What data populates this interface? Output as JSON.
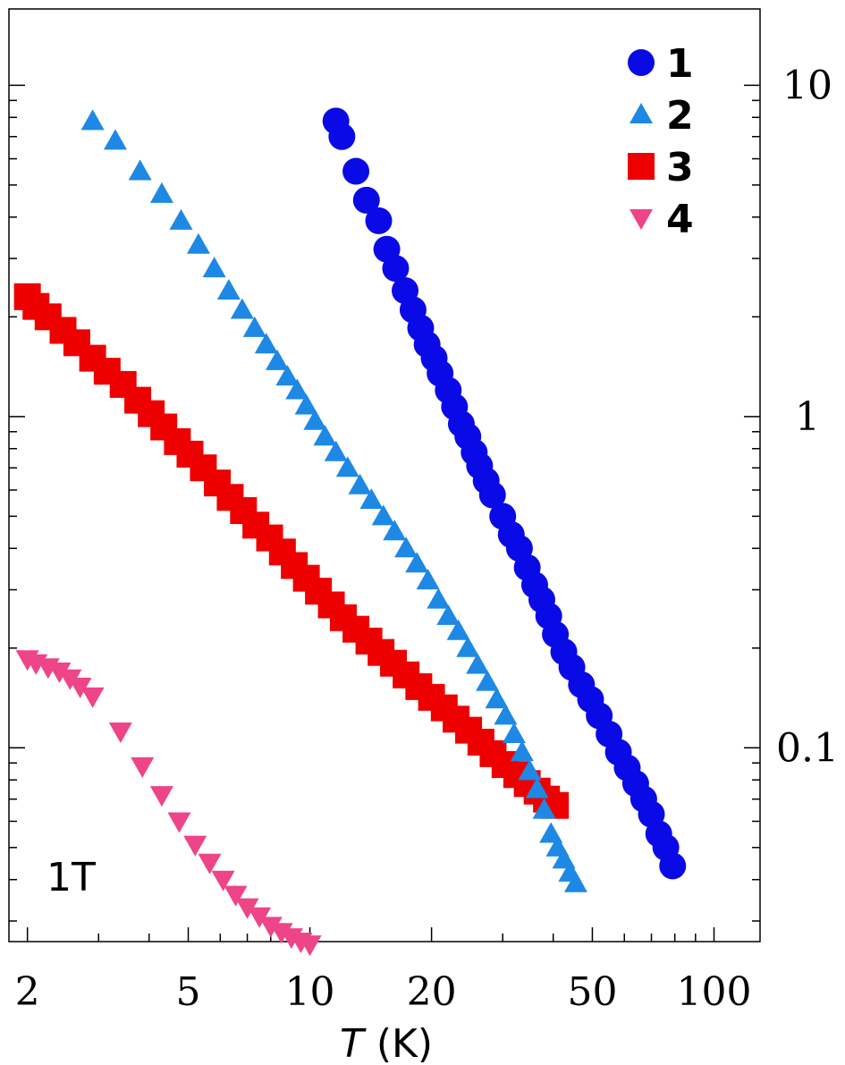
{
  "chart_data": {
    "type": "scatter",
    "xscale": "log",
    "yscale": "log",
    "xlim": [
      1.8,
      130
    ],
    "ylim": [
      0.026,
      17
    ],
    "xlabel_italic": "T",
    "xlabel_rest": " (K)",
    "annotation": "1T",
    "grid": false,
    "legend_position": "top-right",
    "x_ticks": [
      {
        "value": 2,
        "label": "2"
      },
      {
        "value": 5,
        "label": "5"
      },
      {
        "value": 10,
        "label": "10"
      },
      {
        "value": 20,
        "label": "20"
      },
      {
        "value": 50,
        "label": "50"
      },
      {
        "value": 100,
        "label": "100"
      }
    ],
    "y_ticks": [
      {
        "value": 10,
        "label": "10"
      },
      {
        "value": 1,
        "label": "1"
      },
      {
        "value": 0.1,
        "label": "0.1"
      }
    ],
    "series": [
      {
        "name": "1",
        "marker": "circle",
        "color": "#0a0ae6",
        "points": [
          [
            11.6,
            7.8
          ],
          [
            12.0,
            7.0
          ],
          [
            13.0,
            5.5
          ],
          [
            13.8,
            4.5
          ],
          [
            14.8,
            3.9
          ],
          [
            15.5,
            3.2
          ],
          [
            16.3,
            2.8
          ],
          [
            17.2,
            2.4
          ],
          [
            18.0,
            2.1
          ],
          [
            18.8,
            1.85
          ],
          [
            19.5,
            1.65
          ],
          [
            20.3,
            1.5
          ],
          [
            21.0,
            1.35
          ],
          [
            22.0,
            1.2
          ],
          [
            22.8,
            1.07
          ],
          [
            23.7,
            0.95
          ],
          [
            24.6,
            0.87
          ],
          [
            25.5,
            0.78
          ],
          [
            26.3,
            0.71
          ],
          [
            27.3,
            0.64
          ],
          [
            28.3,
            0.58
          ],
          [
            30.0,
            0.5
          ],
          [
            31.5,
            0.44
          ],
          [
            33.0,
            0.4
          ],
          [
            34.5,
            0.35
          ],
          [
            36.0,
            0.31
          ],
          [
            37.5,
            0.28
          ],
          [
            39.0,
            0.25
          ],
          [
            40.5,
            0.22
          ],
          [
            42.5,
            0.195
          ],
          [
            44.5,
            0.175
          ],
          [
            47.0,
            0.155
          ],
          [
            49.5,
            0.14
          ],
          [
            52.0,
            0.125
          ],
          [
            55.0,
            0.11
          ],
          [
            58.0,
            0.097
          ],
          [
            61.0,
            0.087
          ],
          [
            64.0,
            0.078
          ],
          [
            67.0,
            0.07
          ],
          [
            70.0,
            0.063
          ],
          [
            73.0,
            0.055
          ],
          [
            76.0,
            0.05
          ],
          [
            79.0,
            0.044
          ]
        ]
      },
      {
        "name": "2",
        "marker": "triangle-up",
        "color": "#1e88e5",
        "points": [
          [
            2.9,
            7.8
          ],
          [
            3.3,
            6.8
          ],
          [
            3.8,
            5.5
          ],
          [
            4.3,
            4.7
          ],
          [
            4.8,
            3.9
          ],
          [
            5.3,
            3.3
          ],
          [
            5.8,
            2.8
          ],
          [
            6.3,
            2.4
          ],
          [
            6.8,
            2.1
          ],
          [
            7.3,
            1.85
          ],
          [
            7.8,
            1.65
          ],
          [
            8.3,
            1.47
          ],
          [
            8.8,
            1.32
          ],
          [
            9.3,
            1.2
          ],
          [
            9.8,
            1.08
          ],
          [
            10.3,
            0.97
          ],
          [
            10.9,
            0.87
          ],
          [
            11.6,
            0.78
          ],
          [
            12.4,
            0.7
          ],
          [
            13.3,
            0.62
          ],
          [
            14.2,
            0.56
          ],
          [
            15.2,
            0.5
          ],
          [
            16.2,
            0.45
          ],
          [
            17.3,
            0.4
          ],
          [
            18.4,
            0.36
          ],
          [
            19.6,
            0.32
          ],
          [
            20.8,
            0.28
          ],
          [
            22.0,
            0.25
          ],
          [
            23.3,
            0.225
          ],
          [
            24.6,
            0.2
          ],
          [
            26.0,
            0.178
          ],
          [
            27.5,
            0.158
          ],
          [
            29.0,
            0.14
          ],
          [
            30.5,
            0.125
          ],
          [
            32.0,
            0.11
          ],
          [
            33.5,
            0.097
          ],
          [
            35.0,
            0.085
          ],
          [
            36.5,
            0.075
          ],
          [
            38.0,
            0.065
          ],
          [
            39.5,
            0.055
          ],
          [
            41.0,
            0.05
          ],
          [
            42.5,
            0.046
          ],
          [
            44.0,
            0.042
          ],
          [
            45.5,
            0.039
          ]
        ]
      },
      {
        "name": "3",
        "marker": "square",
        "color": "#ee0000",
        "points": [
          [
            2.0,
            2.3
          ],
          [
            2.1,
            2.15
          ],
          [
            2.25,
            2.0
          ],
          [
            2.45,
            1.82
          ],
          [
            2.65,
            1.67
          ],
          [
            2.9,
            1.5
          ],
          [
            3.15,
            1.37
          ],
          [
            3.45,
            1.25
          ],
          [
            3.75,
            1.12
          ],
          [
            4.05,
            1.02
          ],
          [
            4.35,
            0.93
          ],
          [
            4.7,
            0.84
          ],
          [
            5.05,
            0.77
          ],
          [
            5.45,
            0.7
          ],
          [
            5.9,
            0.63
          ],
          [
            6.35,
            0.57
          ],
          [
            6.85,
            0.52
          ],
          [
            7.35,
            0.47
          ],
          [
            7.95,
            0.43
          ],
          [
            8.55,
            0.39
          ],
          [
            9.15,
            0.355
          ],
          [
            9.8,
            0.325
          ],
          [
            10.5,
            0.297
          ],
          [
            11.3,
            0.27
          ],
          [
            12.1,
            0.247
          ],
          [
            13.0,
            0.228
          ],
          [
            14.0,
            0.21
          ],
          [
            15.0,
            0.194
          ],
          [
            16.1,
            0.18
          ],
          [
            17.3,
            0.166
          ],
          [
            18.6,
            0.153
          ],
          [
            20.0,
            0.142
          ],
          [
            21.5,
            0.132
          ],
          [
            23.0,
            0.122
          ],
          [
            24.7,
            0.113
          ],
          [
            26.5,
            0.104
          ],
          [
            28.4,
            0.096
          ],
          [
            30.4,
            0.089
          ],
          [
            32.5,
            0.083
          ],
          [
            34.5,
            0.078
          ],
          [
            36.5,
            0.074
          ],
          [
            38.5,
            0.07
          ],
          [
            40.5,
            0.067
          ]
        ]
      },
      {
        "name": "4",
        "marker": "triangle-down",
        "color": "#ee4488",
        "points": [
          [
            2.0,
            0.185
          ],
          [
            2.1,
            0.18
          ],
          [
            2.25,
            0.175
          ],
          [
            2.4,
            0.17
          ],
          [
            2.55,
            0.162
          ],
          [
            2.7,
            0.153
          ],
          [
            2.9,
            0.143
          ],
          [
            3.4,
            0.112
          ],
          [
            3.85,
            0.088
          ],
          [
            4.3,
            0.072
          ],
          [
            4.75,
            0.06
          ],
          [
            5.2,
            0.051
          ],
          [
            5.65,
            0.045
          ],
          [
            6.1,
            0.04
          ],
          [
            6.55,
            0.036
          ],
          [
            7.0,
            0.033
          ],
          [
            7.5,
            0.031
          ],
          [
            8.0,
            0.029
          ],
          [
            8.5,
            0.0278
          ],
          [
            9.0,
            0.0268
          ],
          [
            9.5,
            0.026
          ],
          [
            10.0,
            0.0255
          ]
        ]
      }
    ]
  }
}
